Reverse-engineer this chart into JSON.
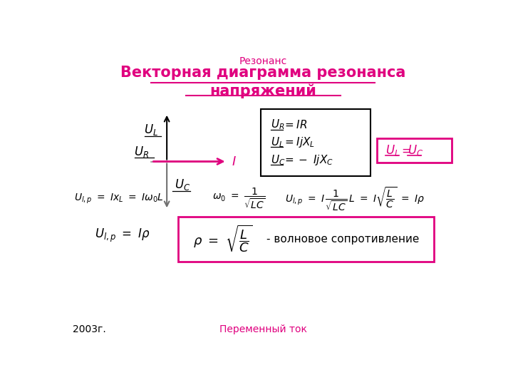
{
  "title_top": "Резонанс",
  "title_main_line1": "Векторная диаграмма резонанса",
  "title_main_line2": "напряжений",
  "footer_left": "2003г.",
  "footer_center": "Переменный ток",
  "magenta": "#e0007f",
  "black": "#000000"
}
